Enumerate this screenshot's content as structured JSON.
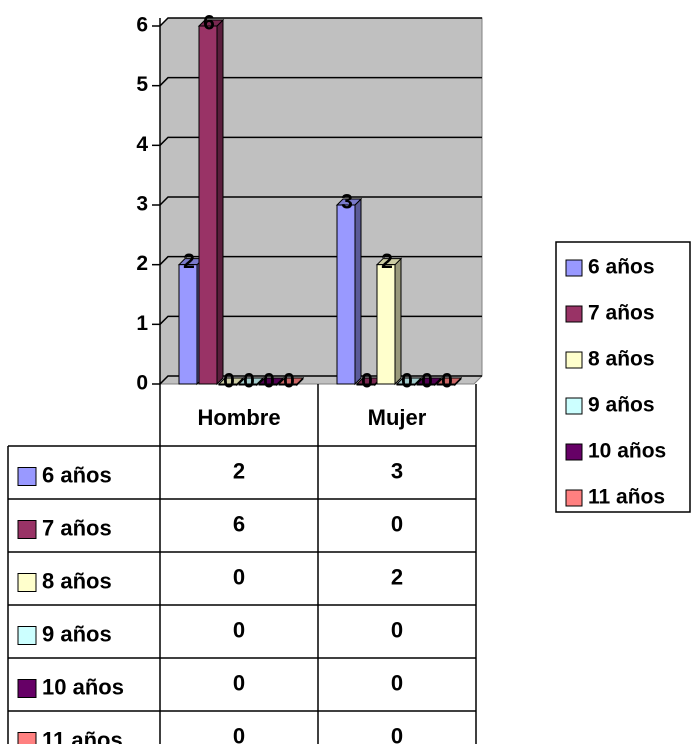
{
  "chart_data": {
    "type": "bar",
    "categories": [
      "Hombre",
      "Mujer"
    ],
    "series": [
      {
        "name": "6 años",
        "color": "#9999ff",
        "values": [
          2,
          3
        ]
      },
      {
        "name": "7 años",
        "color": "#993366",
        "values": [
          6,
          0
        ]
      },
      {
        "name": "8 años",
        "color": "#ffffcc",
        "values": [
          0,
          2
        ]
      },
      {
        "name": "9 años",
        "color": "#ccffff",
        "values": [
          0,
          0
        ]
      },
      {
        "name": "10 años",
        "color": "#660066",
        "values": [
          0,
          0
        ]
      },
      {
        "name": "11 años",
        "color": "#ff8080",
        "values": [
          0,
          0
        ]
      }
    ],
    "ylim": [
      0,
      6
    ],
    "yticks": [
      0,
      1,
      2,
      3,
      4,
      5,
      6
    ],
    "grid": true,
    "legend": "right",
    "data_table": true
  }
}
